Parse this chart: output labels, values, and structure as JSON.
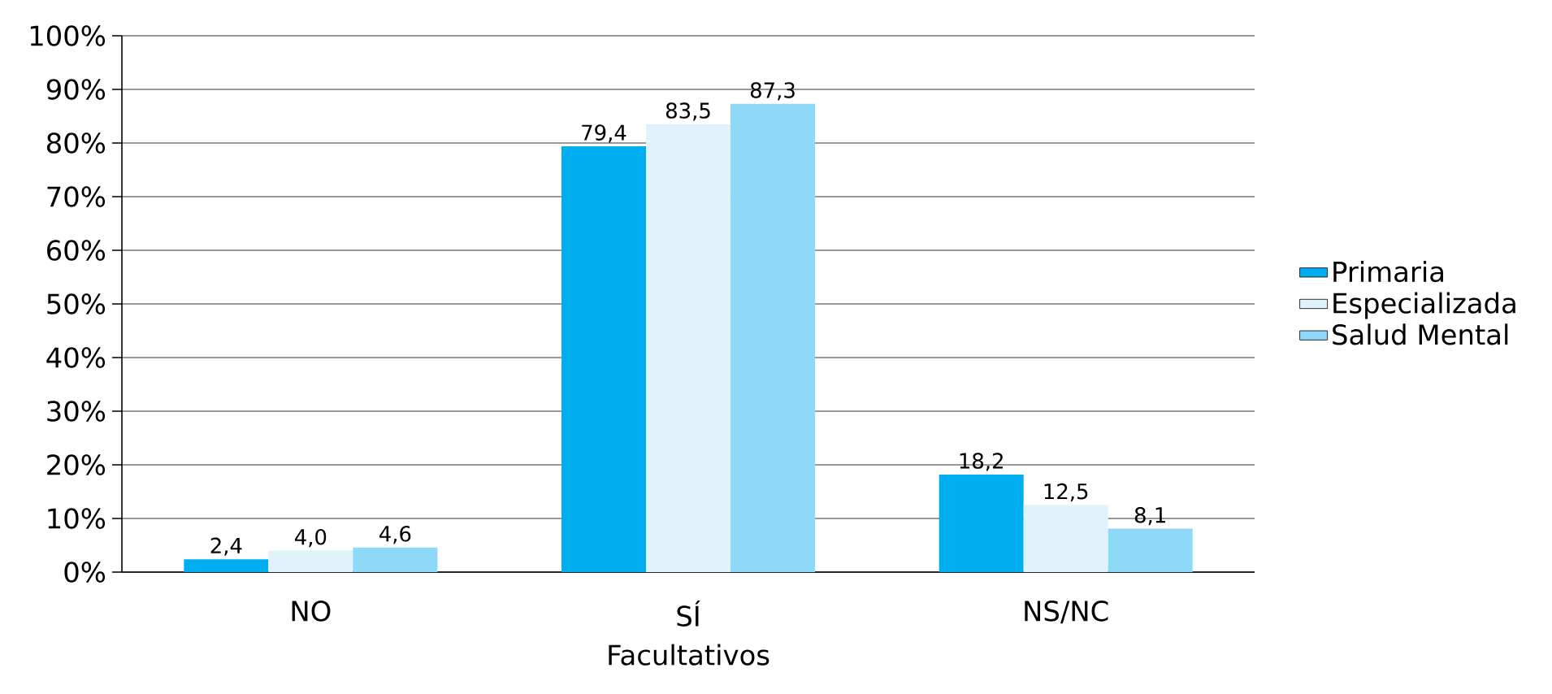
{
  "chart_data": {
    "type": "bar",
    "xlabel": "Facultativos",
    "categories": [
      "NO",
      "SÍ",
      "NS/NC"
    ],
    "series": [
      {
        "name": "Primaria",
        "color": "#00aeef",
        "values": [
          2.4,
          79.4,
          18.2
        ],
        "value_labels": [
          "2,4",
          "79,4",
          "18,2"
        ]
      },
      {
        "name": "Especializada",
        "color": "#e0f3fb",
        "values": [
          4.0,
          83.5,
          12.5
        ],
        "value_labels": [
          "4,0",
          "83,5",
          "12,5"
        ]
      },
      {
        "name": "Salud Mental",
        "color": "#8ed8f8",
        "values": [
          4.6,
          87.3,
          8.1
        ],
        "value_labels": [
          "4,6",
          "87,3",
          "8,1"
        ]
      }
    ],
    "ylim": [
      0,
      100
    ],
    "yticks": [
      {
        "value": 0,
        "label": "0%"
      },
      {
        "value": 10,
        "label": "10%"
      },
      {
        "value": 20,
        "label": "20%"
      },
      {
        "value": 30,
        "label": "30%"
      },
      {
        "value": 40,
        "label": "40%"
      },
      {
        "value": 50,
        "label": "50%"
      },
      {
        "value": 60,
        "label": "60%"
      },
      {
        "value": 70,
        "label": "70%"
      },
      {
        "value": 80,
        "label": "80%"
      },
      {
        "value": 90,
        "label": "90%"
      },
      {
        "value": 100,
        "label": "100%"
      }
    ],
    "grid": "y",
    "legend": "right"
  }
}
